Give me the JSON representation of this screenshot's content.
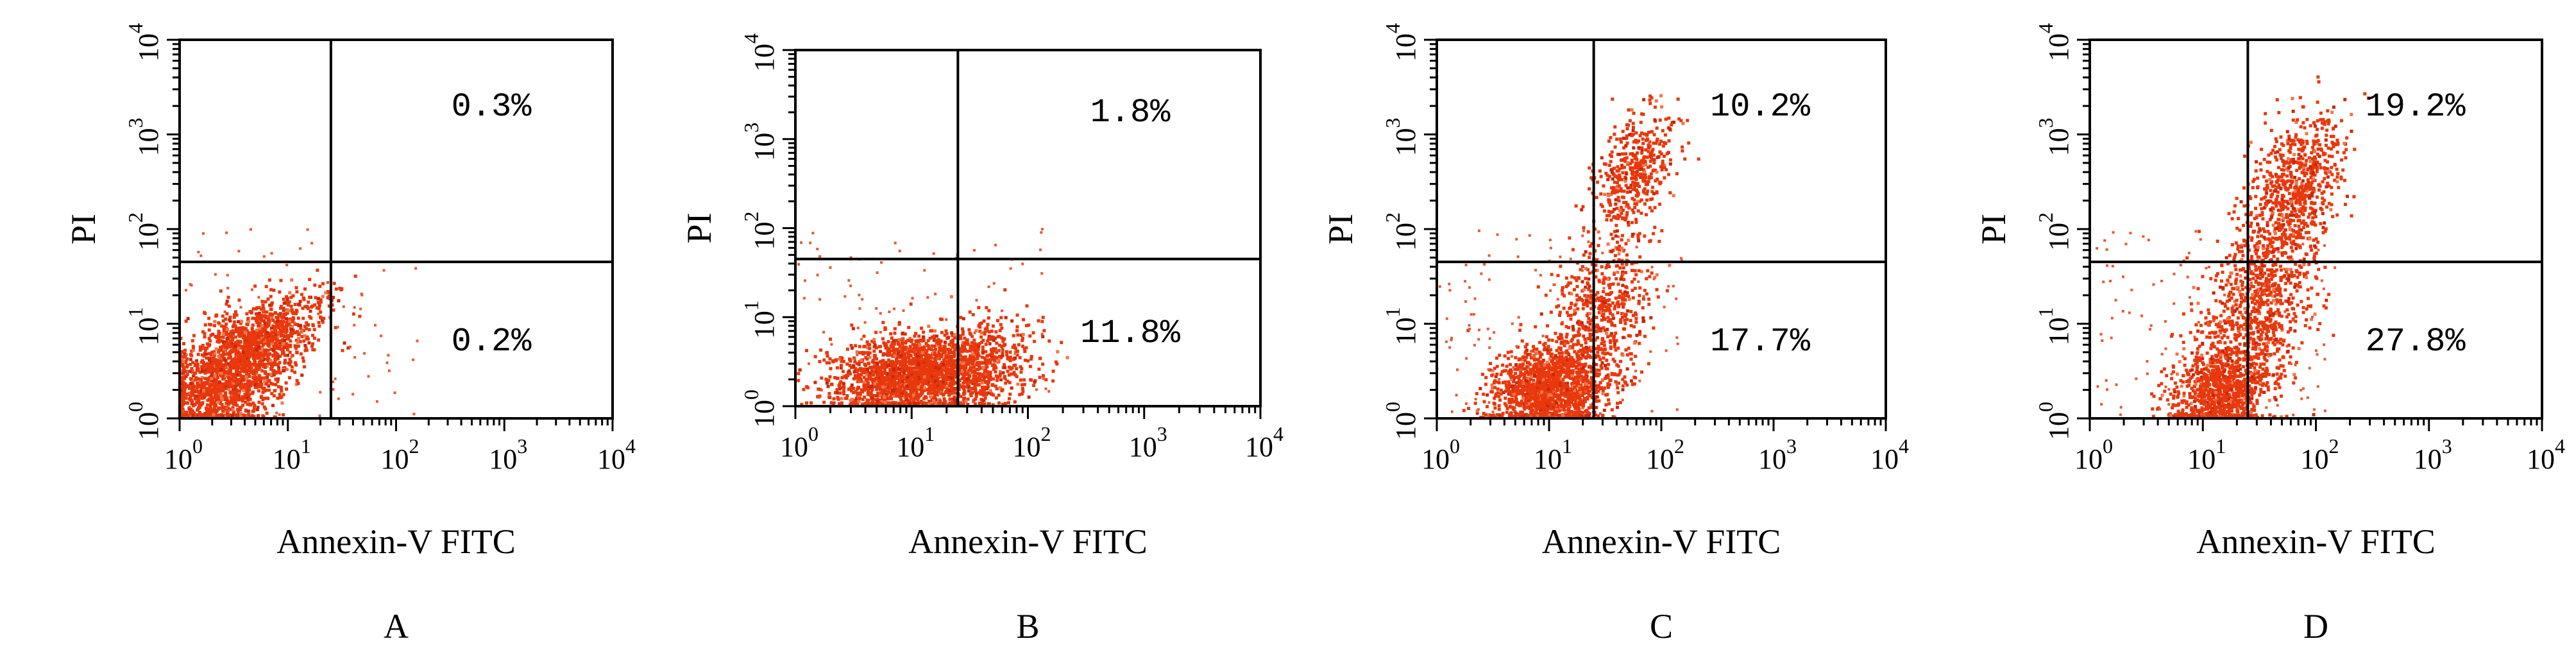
{
  "chart_data": [
    {
      "type": "scatter",
      "panel_label": "A",
      "xlabel": "Annexin-V FITC",
      "ylabel": "PI",
      "xscale": "log",
      "yscale": "log",
      "xlim": [
        1,
        10000
      ],
      "ylim": [
        1,
        10000
      ],
      "x_ticks": [
        "10^0",
        "10^1",
        "10^2",
        "10^3",
        "10^4"
      ],
      "y_ticks": [
        "10^0",
        "10^1",
        "10^2",
        "10^3",
        "10^4"
      ],
      "gate": {
        "x": 25,
        "y": 45
      },
      "quadrant_labels": {
        "upper_right": "0.3%",
        "lower_right": "0.2%"
      },
      "point_color": "#e8380d",
      "population": [
        {
          "x_center": 3.0,
          "y_center": 3.0,
          "x_spread": 0.33,
          "y_spread": 0.28,
          "slope": 0.9,
          "count": 1900
        },
        {
          "x_center": 8.0,
          "y_center": 9.0,
          "x_spread": 0.25,
          "y_spread": 0.18,
          "slope": 0.9,
          "count": 300
        }
      ]
    },
    {
      "type": "scatter",
      "panel_label": "B",
      "xlabel": "Annexin-V FITC",
      "ylabel": "PI",
      "xscale": "log",
      "yscale": "log",
      "xlim": [
        1,
        10000
      ],
      "ylim": [
        1,
        10000
      ],
      "x_ticks": [
        "10^0",
        "10^1",
        "10^2",
        "10^3",
        "10^4"
      ],
      "y_ticks": [
        "10^0",
        "10^1",
        "10^2",
        "10^3",
        "10^4"
      ],
      "gate": {
        "x": 25,
        "y": 45
      },
      "quadrant_labels": {
        "upper_right": "1.8%",
        "lower_right": "11.8%"
      },
      "point_color": "#e8380d",
      "population": [
        {
          "x_center": 10.0,
          "y_center": 2.2,
          "x_spread": 0.35,
          "y_spread": 0.22,
          "slope": 0.15,
          "count": 1900
        },
        {
          "x_center": 35.0,
          "y_center": 3.0,
          "x_spread": 0.28,
          "y_spread": 0.25,
          "slope": 0.3,
          "count": 500
        }
      ]
    },
    {
      "type": "scatter",
      "panel_label": "C",
      "xlabel": "Annexin-V FITC",
      "ylabel": "PI",
      "xscale": "log",
      "yscale": "log",
      "xlim": [
        1,
        10000
      ],
      "ylim": [
        1,
        10000
      ],
      "x_ticks": [
        "10^0",
        "10^1",
        "10^2",
        "10^3",
        "10^4"
      ],
      "y_ticks": [
        "10^0",
        "10^1",
        "10^2",
        "10^3",
        "10^4"
      ],
      "gate": {
        "x": 25,
        "y": 45
      },
      "quadrant_labels": {
        "upper_right": "10.2%",
        "lower_right": "17.7%"
      },
      "point_color": "#e8380d",
      "population": [
        {
          "x_center": 10.0,
          "y_center": 2.0,
          "x_spread": 0.25,
          "y_spread": 0.22,
          "slope": 0.2,
          "count": 1500
        },
        {
          "x_center": 28.0,
          "y_center": 12.0,
          "x_spread": 0.22,
          "y_spread": 0.4,
          "slope": 1.3,
          "count": 600
        },
        {
          "x_center": 60.0,
          "y_center": 400.0,
          "x_spread": 0.18,
          "y_spread": 0.3,
          "slope": 1.0,
          "count": 450
        }
      ]
    },
    {
      "type": "scatter",
      "panel_label": "D",
      "xlabel": "Annexin-V FITC",
      "ylabel": "PI",
      "xscale": "log",
      "yscale": "log",
      "xlim": [
        1,
        10000
      ],
      "ylim": [
        1,
        10000
      ],
      "x_ticks": [
        "10^0",
        "10^1",
        "10^2",
        "10^3",
        "10^4"
      ],
      "y_ticks": [
        "10^0",
        "10^1",
        "10^2",
        "10^3",
        "10^4"
      ],
      "gate": {
        "x": 25,
        "y": 45
      },
      "quadrant_labels": {
        "upper_right": "19.2%",
        "lower_right": "27.8%"
      },
      "point_color": "#e8380d",
      "population": [
        {
          "x_center": 14.0,
          "y_center": 2.0,
          "x_spread": 0.22,
          "y_spread": 0.22,
          "slope": 0.3,
          "count": 900
        },
        {
          "x_center": 30.0,
          "y_center": 15.0,
          "x_spread": 0.25,
          "y_spread": 0.45,
          "slope": 1.2,
          "count": 900
        },
        {
          "x_center": 70.0,
          "y_center": 300.0,
          "x_spread": 0.2,
          "y_spread": 0.35,
          "slope": 1.0,
          "count": 700
        }
      ]
    }
  ]
}
